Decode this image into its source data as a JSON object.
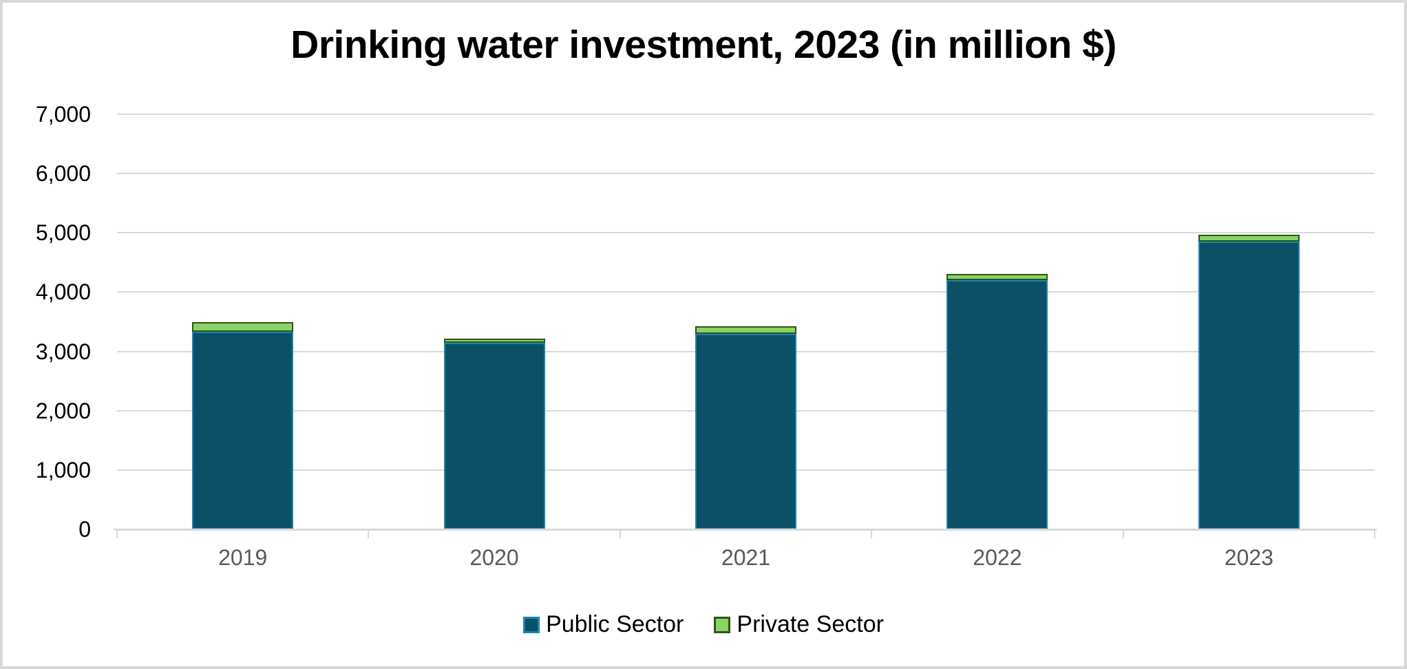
{
  "title": "Drinking water investment, 2023 (in million $)",
  "colors": {
    "public_fill": "#0B5066",
    "public_border": "#1B84AE",
    "private_fill": "#8CD266",
    "private_border": "#2F5418",
    "gridline": "#D9D9D9",
    "axis_line": "#D9D9D9",
    "x_label_color": "#595959",
    "y_label_color": "#000000",
    "title_color": "#000000",
    "canvas_border": "#D8D8D8"
  },
  "legend": {
    "entries": [
      {
        "label": "Public Sector",
        "fill": "#0B5066",
        "border": "#1B84AE"
      },
      {
        "label": "Private Sector",
        "fill": "#8CD266",
        "border": "#2F5418"
      }
    ]
  },
  "chart_data": {
    "type": "bar",
    "stacked": true,
    "title": "Drinking water investment, 2023 (in million $)",
    "categories": [
      "2019",
      "2020",
      "2021",
      "2022",
      "2023"
    ],
    "series": [
      {
        "name": "Public Sector",
        "values": [
          3330,
          3150,
          3300,
          4200,
          4850
        ]
      },
      {
        "name": "Private Sector",
        "values": [
          160,
          60,
          130,
          110,
          120
        ]
      }
    ],
    "totals": [
      3490,
      3210,
      3430,
      4310,
      4970
    ],
    "xlabel": "",
    "ylabel": "",
    "ylim": [
      0,
      7000
    ],
    "ytick_step": 1000,
    "ytick_labels": [
      "0",
      "1,000",
      "2,000",
      "3,000",
      "4,000",
      "5,000",
      "6,000",
      "7,000"
    ],
    "grid": true,
    "legend_position": "bottom"
  }
}
